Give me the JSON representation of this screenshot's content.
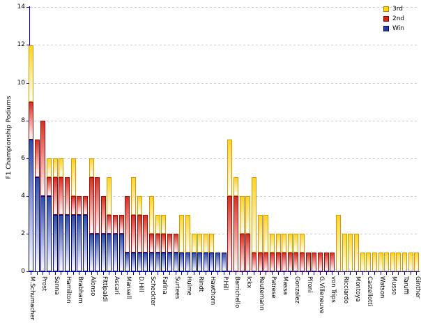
{
  "colors": {
    "axis": "#0000cd",
    "grid": "#c9c9c9",
    "win_fill": "#2c4da0",
    "win_border": "#000080",
    "second_fill": "#d52f20",
    "second_border": "#9e0b0b",
    "third_fill": "#ffd428",
    "third_border": "#d99800",
    "legend_third": "#ffd700",
    "legend_third_border": "#b8860b",
    "legend_second": "#cd2a1e",
    "legend_second_border": "#8b0000",
    "legend_win": "#24419c",
    "legend_win_border": "#000080"
  },
  "legend": {
    "position": "top-right",
    "items": [
      {
        "label": "3rd",
        "color": "#ffd700",
        "border": "#b8860b"
      },
      {
        "label": "2nd",
        "color": "#cd2a1e",
        "border": "#8b0000"
      },
      {
        "label": "Win",
        "color": "#24419c",
        "border": "#000080"
      }
    ]
  },
  "chart_data": {
    "type": "bar",
    "subtype": "stacked-vertical",
    "title": "",
    "xlabel": "",
    "ylabel": "F1 Championship Podiums",
    "ylim": [
      0,
      14
    ],
    "yticks": [
      0,
      2,
      4,
      6,
      8,
      10,
      12,
      14
    ],
    "grid": "horizontal-dashed",
    "series_order": [
      "Win",
      "2nd",
      "3rd"
    ],
    "note_labeling": "only every second bar carries an x-axis label in the pixels; unlabeled bars have label \"\"",
    "bars": [
      {
        "label": "M.Schumacher",
        "win": 7,
        "second": 2,
        "third": 3
      },
      {
        "label": "",
        "win": 5,
        "second": 2,
        "third": 0
      },
      {
        "label": "Prost",
        "win": 4,
        "second": 4,
        "third": 0
      },
      {
        "label": "",
        "win": 4,
        "second": 1,
        "third": 1
      },
      {
        "label": "Senna",
        "win": 3,
        "second": 2,
        "third": 1
      },
      {
        "label": "",
        "win": 3,
        "second": 2,
        "third": 1
      },
      {
        "label": "Hamilton",
        "win": 3,
        "second": 2,
        "third": 0
      },
      {
        "label": "",
        "win": 3,
        "second": 1,
        "third": 2
      },
      {
        "label": "Brabham",
        "win": 3,
        "second": 1,
        "third": 0
      },
      {
        "label": "",
        "win": 3,
        "second": 1,
        "third": 0
      },
      {
        "label": "Alonso",
        "win": 2,
        "second": 3,
        "third": 1
      },
      {
        "label": "",
        "win": 2,
        "second": 3,
        "third": 0
      },
      {
        "label": "Fittipaldi",
        "win": 2,
        "second": 2,
        "third": 0
      },
      {
        "label": "",
        "win": 2,
        "second": 1,
        "third": 2
      },
      {
        "label": "Ascari",
        "win": 2,
        "second": 1,
        "third": 0
      },
      {
        "label": "",
        "win": 2,
        "second": 1,
        "third": 0
      },
      {
        "label": "Mansell",
        "win": 1,
        "second": 3,
        "third": 0
      },
      {
        "label": "",
        "win": 1,
        "second": 2,
        "third": 2
      },
      {
        "label": "D.Hill",
        "win": 1,
        "second": 2,
        "third": 1
      },
      {
        "label": "",
        "win": 1,
        "second": 2,
        "third": 0
      },
      {
        "label": "Scheckter",
        "win": 1,
        "second": 1,
        "third": 2
      },
      {
        "label": "",
        "win": 1,
        "second": 1,
        "third": 1
      },
      {
        "label": "Farina",
        "win": 1,
        "second": 1,
        "third": 1
      },
      {
        "label": "",
        "win": 1,
        "second": 1,
        "third": 0
      },
      {
        "label": "Surtees",
        "win": 1,
        "second": 1,
        "third": 0
      },
      {
        "label": "",
        "win": 1,
        "second": 0,
        "third": 2
      },
      {
        "label": "Hulme",
        "win": 1,
        "second": 0,
        "third": 2
      },
      {
        "label": "",
        "win": 1,
        "second": 0,
        "third": 1
      },
      {
        "label": "Rindt",
        "win": 1,
        "second": 0,
        "third": 1
      },
      {
        "label": "",
        "win": 1,
        "second": 0,
        "third": 1
      },
      {
        "label": "Hawthorn",
        "win": 1,
        "second": 0,
        "third": 1
      },
      {
        "label": "",
        "win": 1,
        "second": 0,
        "third": 0
      },
      {
        "label": "P.Hill",
        "win": 1,
        "second": 0,
        "third": 0
      },
      {
        "label": "",
        "win": 0,
        "second": 4,
        "third": 3
      },
      {
        "label": "Barrichello",
        "win": 0,
        "second": 4,
        "third": 1
      },
      {
        "label": "",
        "win": 0,
        "second": 2,
        "third": 2
      },
      {
        "label": "Ickx",
        "win": 0,
        "second": 2,
        "third": 2
      },
      {
        "label": "",
        "win": 0,
        "second": 1,
        "third": 4
      },
      {
        "label": "Reutemann",
        "win": 0,
        "second": 1,
        "third": 2
      },
      {
        "label": "",
        "win": 0,
        "second": 1,
        "third": 2
      },
      {
        "label": "Patrese",
        "win": 0,
        "second": 1,
        "third": 1
      },
      {
        "label": "",
        "win": 0,
        "second": 1,
        "third": 1
      },
      {
        "label": "Massa",
        "win": 0,
        "second": 1,
        "third": 1
      },
      {
        "label": "",
        "win": 0,
        "second": 1,
        "third": 1
      },
      {
        "label": "Gonzalez",
        "win": 0,
        "second": 1,
        "third": 1
      },
      {
        "label": "",
        "win": 0,
        "second": 1,
        "third": 1
      },
      {
        "label": "Pironi",
        "win": 0,
        "second": 1,
        "third": 0
      },
      {
        "label": "",
        "win": 0,
        "second": 1,
        "third": 0
      },
      {
        "label": "G.Villeneuve",
        "win": 0,
        "second": 1,
        "third": 0
      },
      {
        "label": "",
        "win": 0,
        "second": 1,
        "third": 0
      },
      {
        "label": "von Trips",
        "win": 0,
        "second": 1,
        "third": 0
      },
      {
        "label": "",
        "win": 0,
        "second": 0,
        "third": 3
      },
      {
        "label": "Ricciardo",
        "win": 0,
        "second": 0,
        "third": 2
      },
      {
        "label": "",
        "win": 0,
        "second": 0,
        "third": 2
      },
      {
        "label": "Montoya",
        "win": 0,
        "second": 0,
        "third": 2
      },
      {
        "label": "",
        "win": 0,
        "second": 0,
        "third": 1
      },
      {
        "label": "Castellotti",
        "win": 0,
        "second": 0,
        "third": 1
      },
      {
        "label": "",
        "win": 0,
        "second": 0,
        "third": 1
      },
      {
        "label": "Watson",
        "win": 0,
        "second": 0,
        "third": 1
      },
      {
        "label": "",
        "win": 0,
        "second": 0,
        "third": 1
      },
      {
        "label": "Musso",
        "win": 0,
        "second": 0,
        "third": 1
      },
      {
        "label": "",
        "win": 0,
        "second": 0,
        "third": 1
      },
      {
        "label": "Taruffi",
        "win": 0,
        "second": 0,
        "third": 1
      },
      {
        "label": "",
        "win": 0,
        "second": 0,
        "third": 1
      },
      {
        "label": "Ginther",
        "win": 0,
        "second": 0,
        "third": 1
      }
    ]
  }
}
